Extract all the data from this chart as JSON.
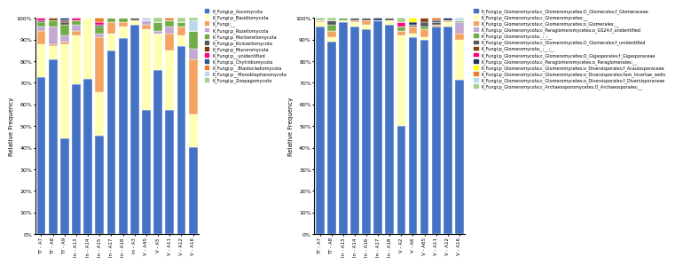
{
  "left_categories": [
    "TT - A7",
    "TT - A8",
    "TY - A9",
    "In - A13",
    "In - A14",
    "In - A15",
    "In - A17",
    "In - A18",
    "In - A3",
    "V - A45",
    "V - A5",
    "V - A11",
    "V - A12",
    "V - A16"
  ],
  "left_series": [
    {
      "label": "K_Fungi;p_Ascomycota",
      "color": "#4472C4",
      "values": [
        72,
        80,
        44,
        68,
        72,
        45,
        84,
        89,
        96,
        57,
        75,
        57,
        86,
        40
      ]
    },
    {
      "label": "K_Fungi;p_Basidiomycota",
      "color": "#FFFFB3",
      "values": [
        15,
        6,
        43,
        22,
        28,
        20,
        8,
        5,
        2,
        37,
        17,
        27,
        5,
        15
      ]
    },
    {
      "label": "K_Fungi;__",
      "color": "#F4A460",
      "values": [
        6,
        1,
        1,
        2,
        0,
        25,
        5,
        2,
        0,
        2,
        0,
        8,
        4,
        25
      ]
    },
    {
      "label": "K_Fungi;p_Rozellomycota",
      "color": "#C3A8D1",
      "values": [
        2,
        8,
        3,
        3,
        0,
        2,
        0,
        0,
        0,
        2,
        1,
        3,
        0,
        5
      ]
    },
    {
      "label": "K_Fungi;p_Mortierellomycota",
      "color": "#70AD47",
      "values": [
        2,
        3,
        5,
        2,
        0,
        3,
        2,
        2,
        0,
        0,
        4,
        3,
        2,
        8
      ]
    },
    {
      "label": "K_Fungi;p_Kickxellomycota",
      "color": "#595959",
      "values": [
        1,
        0,
        1,
        0,
        0,
        1,
        0,
        0,
        1,
        0,
        0,
        0,
        0,
        0
      ]
    },
    {
      "label": "K_Fungi;p_Mucoromycota",
      "color": "#843C0C",
      "values": [
        0,
        1,
        1,
        0,
        0,
        0,
        0,
        0,
        0,
        0,
        0,
        0,
        0,
        0
      ]
    },
    {
      "label": "K_Fungi;p__unidentified",
      "color": "#FF007F",
      "values": [
        1,
        0,
        0,
        1,
        0,
        1,
        0,
        0,
        0,
        0,
        0,
        0,
        0,
        0
      ]
    },
    {
      "label": "K_Fungi;p_Chytridiomycota",
      "color": "#2F5496",
      "values": [
        0,
        0,
        1,
        0,
        0,
        0,
        0,
        0,
        0,
        0,
        0,
        0,
        0,
        0
      ]
    },
    {
      "label": "K_Fungi;p__Blastocladiomycota",
      "color": "#ED7D31",
      "values": [
        0,
        0,
        0,
        0,
        0,
        2,
        0,
        0,
        0,
        0,
        0,
        1,
        0,
        0
      ]
    },
    {
      "label": "K_Fungi;p__Monoblepharomycota",
      "color": "#BDD7EE",
      "values": [
        0,
        0,
        0,
        0,
        0,
        0,
        0,
        0,
        0,
        1,
        0,
        0,
        0,
        5
      ]
    },
    {
      "label": "K_Fungi;p_Zoopagomycota",
      "color": "#A9D18E",
      "values": [
        0,
        0,
        0,
        0,
        0,
        0,
        0,
        0,
        0,
        0,
        2,
        0,
        2,
        1
      ]
    }
  ],
  "right_categories": [
    "TT - A7",
    "TT - A8",
    "In - A13",
    "In - A14",
    "In - A16",
    "In - A17",
    "In - A18",
    "V - A2",
    "V - A6",
    "V - A65",
    "V - A11",
    "V - A12",
    "V - A16"
  ],
  "right_series": [
    {
      "label": "K_Fungi;p_Glomeromycota;c_Glomeromycetes;O_Glomerales;f_Glomeraceae",
      "color": "#4472C4",
      "values": [
        95,
        88,
        97,
        95,
        94,
        98,
        96,
        50,
        90,
        89,
        96,
        95,
        70
      ]
    },
    {
      "label": "K_Fungi;p_Glomeromycota;c_Glomeromycetes;__",
      "color": "#FFFFB3",
      "values": [
        2,
        2,
        1,
        2,
        2,
        0,
        2,
        42,
        2,
        1,
        0,
        2,
        18
      ]
    },
    {
      "label": "K_Fungi;p_Glomeromycota;c_Glomeromycetes;o_Glomerales;__",
      "color": "#F4A460",
      "values": [
        1,
        3,
        0,
        1,
        2,
        0,
        0,
        2,
        3,
        4,
        1,
        1,
        3
      ]
    },
    {
      "label": "K_Fungi;p_Glomeromycota;c_Paraglomeromycetes;o_GS24;f_unidentified",
      "color": "#C3A8D1",
      "values": [
        0,
        0,
        0,
        0,
        0,
        0,
        0,
        0,
        0,
        0,
        0,
        0,
        5
      ]
    },
    {
      "label": "K_Fungi;p_Glomeromycota;_;_;__",
      "color": "#70AD47",
      "values": [
        0,
        3,
        1,
        0,
        0,
        0,
        0,
        2,
        0,
        1,
        0,
        0,
        1
      ]
    },
    {
      "label": "K_Fungi;p_Glomeromycota;c_Glomeromycetes;O_Glomerales;f_unidentified",
      "color": "#595959",
      "values": [
        0,
        2,
        0,
        1,
        1,
        0,
        1,
        0,
        1,
        2,
        1,
        0,
        0
      ]
    },
    {
      "label": "K_Fungi;p_Glomeromycota;_;__;__",
      "color": "#843C0C",
      "values": [
        0,
        0,
        0,
        0,
        0,
        0,
        0,
        0,
        0,
        2,
        0,
        0,
        0
      ]
    },
    {
      "label": "K_Fungi;p_Glomeromycota;c_Glomeromycetes;O_Gigasporales;f_Gigasporaceae",
      "color": "#FF007F",
      "values": [
        0,
        0,
        0,
        0,
        0,
        0,
        0,
        2,
        0,
        0,
        0,
        0,
        0
      ]
    },
    {
      "label": "K_Fungi;p_Glomeromycota;c_Paraglomeromycetes;o_Paraglomerales;__",
      "color": "#1F3864",
      "values": [
        0,
        0,
        0,
        0,
        0,
        1,
        0,
        0,
        1,
        0,
        1,
        1,
        0
      ]
    },
    {
      "label": "K_Fungi;p_Glomeromycota;c_Glomeromycetes;o_Diversisporales;f_Acaulosporaceae",
      "color": "#FFFF00",
      "values": [
        0,
        0,
        0,
        0,
        0,
        0,
        0,
        0,
        2,
        0,
        0,
        0,
        0
      ]
    },
    {
      "label": "K_Fungi;p_Glomeromycota;c_Glomeromycetes;o_Diversisporales;fam_Incertae_sedis",
      "color": "#ED7D31",
      "values": [
        0,
        0,
        0,
        0,
        0,
        0,
        0,
        0,
        0,
        0,
        1,
        0,
        0
      ]
    },
    {
      "label": "K_Fungi;p_Glomeromycota;c_Glomeromycetes;o_Diversisporales;f_Diversisporaceae",
      "color": "#BDD7EE",
      "values": [
        0,
        0,
        0,
        0,
        0,
        0,
        0,
        0,
        0,
        0,
        0,
        0,
        1
      ]
    },
    {
      "label": "K_Fungi;p_Glomeromycota;c_Archaeosporomycetes;O_Archaeosporales;__",
      "color": "#A9D18E",
      "values": [
        1,
        1,
        0,
        0,
        0,
        0,
        0,
        2,
        0,
        0,
        0,
        0,
        0
      ]
    }
  ],
  "ylabel": "Relative Frequency",
  "bg_color": "#FFFFFF"
}
